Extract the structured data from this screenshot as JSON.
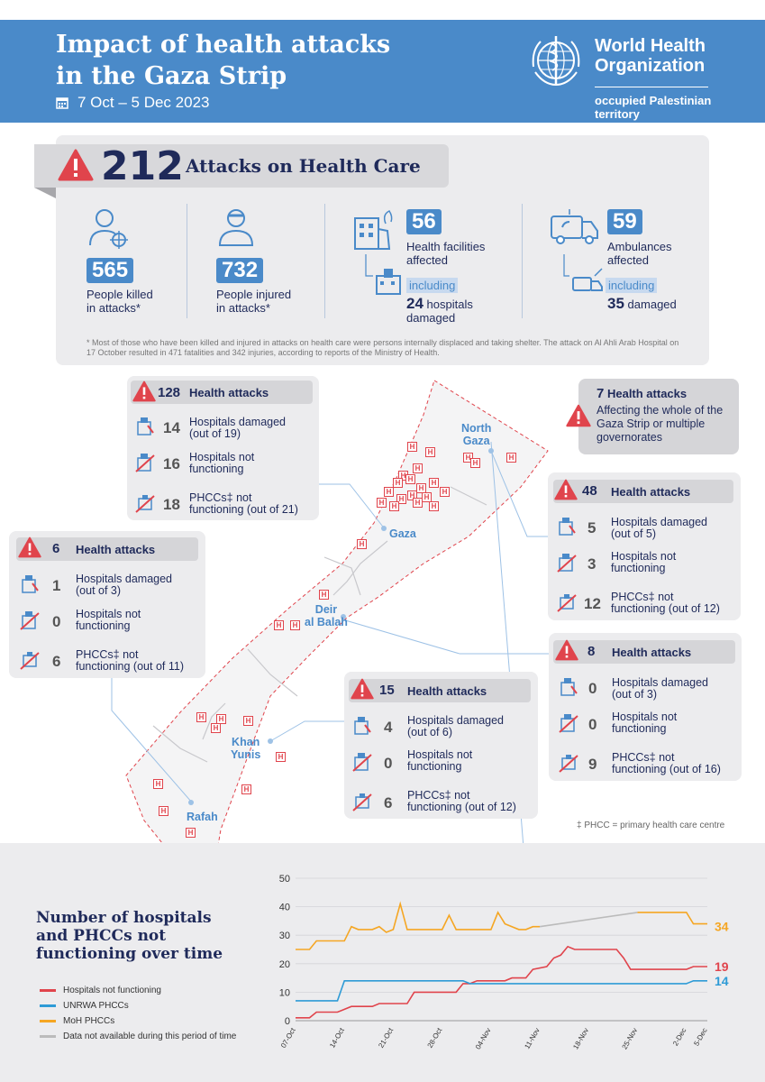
{
  "header": {
    "title_line1": "Impact of health attacks",
    "title_line2": "in the Gaza Strip",
    "date": "7 Oct – 5 Dec 2023",
    "org_line1": "World Health",
    "org_line2": "Organization",
    "org_sub1": "occupied Palestinian",
    "org_sub2": "territory"
  },
  "summary": {
    "total": "212",
    "total_label": "Attacks on Health Care",
    "killed": "565",
    "killed_l1": "People killed",
    "killed_l2": "in attacks*",
    "injured": "732",
    "injured_l1": "People injured",
    "injured_l2": "in attacks*",
    "facilities": "56",
    "facilities_l1": "Health facilities",
    "facilities_l2": "affected",
    "including": "including",
    "hospitals_damaged": "24",
    "hospitals_damaged_l": "hospitals",
    "hospitals_damaged_l2": "damaged",
    "ambulances": "59",
    "ambulances_l1": "Ambulances",
    "ambulances_l2": "affected",
    "amb_damaged": "35",
    "amb_damaged_l": "damaged",
    "footnote": "* Most of those who have been killed and injured in attacks on health care were persons internally displaced and taking shelter. The attack on Al Ahli Arab Hospital on 17 October resulted in 471 fatalities and 342 injuries, according to reports of the Ministry of Health."
  },
  "boxes": {
    "gaza": {
      "count": "128",
      "label": "Health attacks",
      "r1n": "14",
      "r1a": "Hospitals damaged",
      "r1b": "(out of 19)",
      "r2n": "16",
      "r2a": "Hospitals not",
      "r2b": "functioning",
      "r3n": "18",
      "r3a": "PHCCs‡ not",
      "r3b": "functioning (out of 21)"
    },
    "whole": {
      "count": "7",
      "label": "Health attacks",
      "d1": "Affecting the whole of the",
      "d2": "Gaza Strip or multiple",
      "d3": "governorates"
    },
    "north": {
      "count": "48",
      "label": "Health attacks",
      "r1n": "5",
      "r1a": "Hospitals damaged",
      "r1b": "(out of 5)",
      "r2n": "3",
      "r2a": "Hospitals not",
      "r2b": "functioning",
      "r3n": "12",
      "r3a": "PHCCs‡ not",
      "r3b": "functioning (out of 12)"
    },
    "rafah": {
      "count": "6",
      "label": "Health attacks",
      "r1n": "1",
      "r1a": "Hospitals damaged",
      "r1b": "(out of 3)",
      "r2n": "0",
      "r2a": "Hospitals not",
      "r2b": "functioning",
      "r3n": "6",
      "r3a": "PHCCs‡ not",
      "r3b": "functioning (out of 11)"
    },
    "deir": {
      "count": "8",
      "label": "Health attacks",
      "r1n": "0",
      "r1a": "Hospitals damaged",
      "r1b": "(out of 3)",
      "r2n": "0",
      "r2a": "Hospitals not",
      "r2b": "functioning",
      "r3n": "9",
      "r3a": "PHCCs‡ not",
      "r3b": "functioning (out of 16)"
    },
    "khan": {
      "count": "15",
      "label": "Health attacks",
      "r1n": "4",
      "r1a": "Hospitals damaged",
      "r1b": "(out of 6)",
      "r2n": "0",
      "r2a": "Hospitals not",
      "r2b": "functioning",
      "r3n": "6",
      "r3a": "PHCCs‡ not",
      "r3b": "functioning (out of 12)"
    }
  },
  "places": {
    "north1": "North",
    "north2": "Gaza",
    "gaza": "Gaza",
    "deir1": "Deir",
    "deir2": "al Balah",
    "khan1": "Khan",
    "khan2": "Yunis",
    "rafah": "Rafah"
  },
  "phcc_note": "‡ PHCC = primary health care centre",
  "chart_data": {
    "type": "line",
    "title": "Number of hospitals and PHCCs not functioning over time",
    "x_ticks": [
      "07-Oct",
      "14-Oct",
      "21-Oct",
      "28-Oct",
      "04-Nov",
      "11-Nov",
      "18-Nov",
      "25-Nov",
      "2-Dec",
      "5-Dec"
    ],
    "x_range": [
      "2023-10-07",
      "2023-12-05"
    ],
    "ylim": [
      0,
      50
    ],
    "y_ticks": [
      0,
      10,
      20,
      30,
      40,
      50
    ],
    "series": [
      {
        "name": "Hospitals not functioning",
        "color": "#e0444c",
        "end_label": "19",
        "points": [
          [
            "2023-10-07",
            1
          ],
          [
            "2023-10-09",
            1
          ],
          [
            "2023-10-10",
            3
          ],
          [
            "2023-10-13",
            3
          ],
          [
            "2023-10-15",
            5
          ],
          [
            "2023-10-18",
            5
          ],
          [
            "2023-10-19",
            6
          ],
          [
            "2023-10-23",
            6
          ],
          [
            "2023-10-24",
            10
          ],
          [
            "2023-10-30",
            10
          ],
          [
            "2023-10-31",
            13
          ],
          [
            "2023-11-01",
            13
          ],
          [
            "2023-11-02",
            14
          ],
          [
            "2023-11-06",
            14
          ],
          [
            "2023-11-07",
            15
          ],
          [
            "2023-11-09",
            15
          ],
          [
            "2023-11-10",
            18
          ],
          [
            "2023-11-12",
            19
          ],
          [
            "2023-11-13",
            22
          ],
          [
            "2023-11-14",
            23
          ],
          [
            "2023-11-15",
            26
          ],
          [
            "2023-11-16",
            25
          ],
          [
            "2023-11-22",
            25
          ],
          [
            "2023-11-23",
            22
          ],
          [
            "2023-11-24",
            18
          ],
          [
            "2023-12-02",
            18
          ],
          [
            "2023-12-03",
            19
          ],
          [
            "2023-12-05",
            19
          ]
        ]
      },
      {
        "name": "UNRWA PHCCs",
        "color": "#2e9bd6",
        "end_label": "14",
        "points": [
          [
            "2023-10-07",
            7
          ],
          [
            "2023-10-13",
            7
          ],
          [
            "2023-10-14",
            14
          ],
          [
            "2023-10-31",
            14
          ],
          [
            "2023-11-01",
            13
          ],
          [
            "2023-12-02",
            13
          ],
          [
            "2023-12-03",
            14
          ],
          [
            "2023-12-05",
            14
          ]
        ]
      },
      {
        "name": "MoH PHCCs",
        "color": "#f5a623",
        "end_label": "34",
        "points": [
          [
            "2023-10-07",
            25
          ],
          [
            "2023-10-09",
            25
          ],
          [
            "2023-10-10",
            28
          ],
          [
            "2023-10-14",
            28
          ],
          [
            "2023-10-15",
            33
          ],
          [
            "2023-10-16",
            32
          ],
          [
            "2023-10-18",
            32
          ],
          [
            "2023-10-19",
            33
          ],
          [
            "2023-10-20",
            31
          ],
          [
            "2023-10-21",
            32
          ],
          [
            "2023-10-22",
            41
          ],
          [
            "2023-10-23",
            32
          ],
          [
            "2023-10-28",
            32
          ],
          [
            "2023-10-29",
            37
          ],
          [
            "2023-10-30",
            32
          ],
          [
            "2023-11-04",
            32
          ],
          [
            "2023-11-05",
            38
          ],
          [
            "2023-11-06",
            34
          ],
          [
            "2023-11-08",
            32
          ],
          [
            "2023-11-09",
            32
          ],
          [
            "2023-11-10",
            33
          ],
          [
            "2023-11-11",
            33
          ]
        ]
      },
      {
        "name": "MoH PHCCs (continued)",
        "color": "#f5a623",
        "hide_legend": true,
        "points": [
          [
            "2023-11-25",
            38
          ],
          [
            "2023-12-02",
            38
          ],
          [
            "2023-12-03",
            34
          ],
          [
            "2023-12-05",
            34
          ]
        ]
      },
      {
        "name": "Data not available during this period of time",
        "color": "#bbbbbb",
        "points": [
          [
            "2023-11-11",
            33
          ],
          [
            "2023-11-25",
            38
          ]
        ]
      }
    ]
  }
}
